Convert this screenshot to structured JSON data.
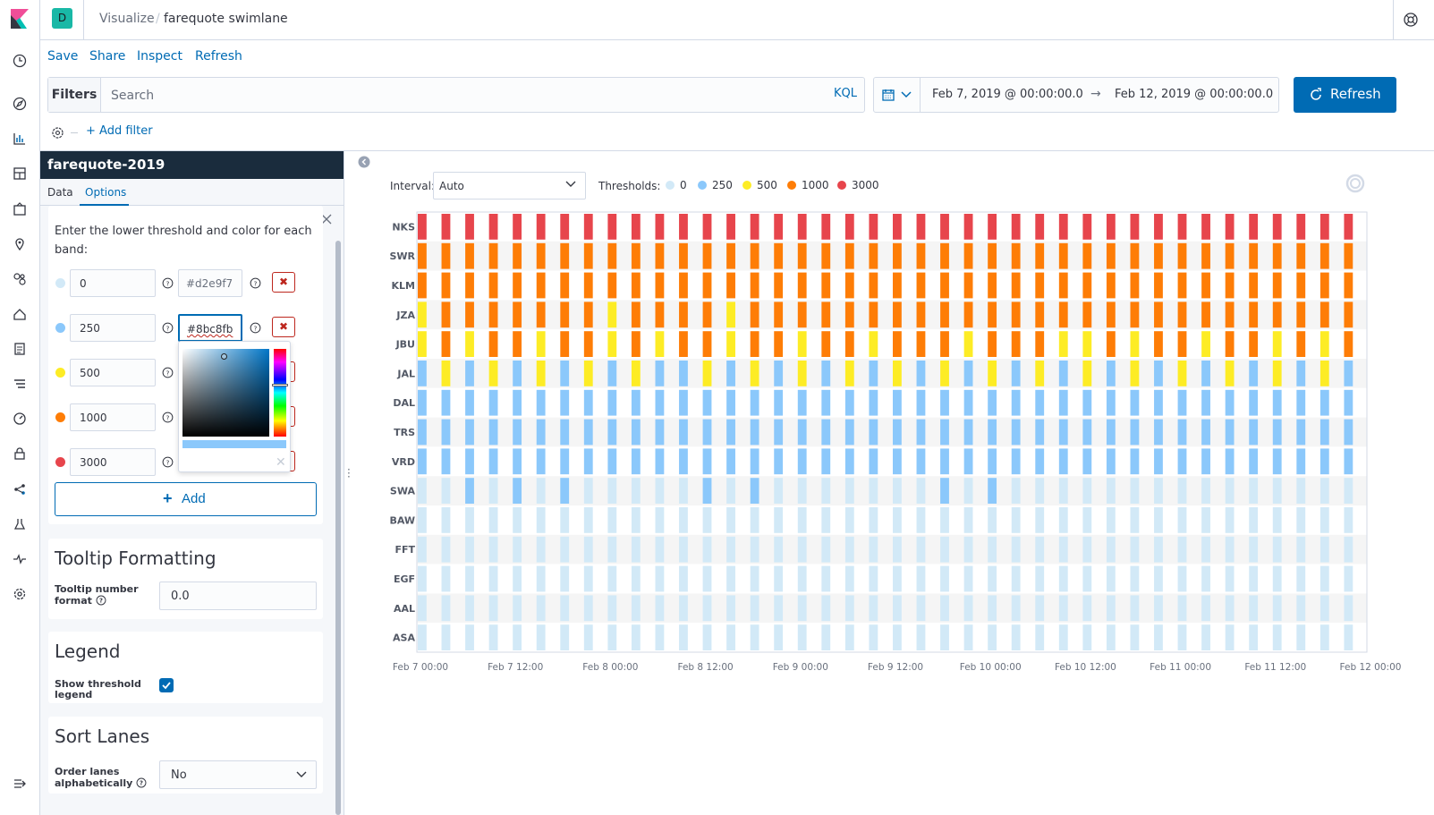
{
  "topbar": {
    "space_initial": "D",
    "breadcrumb_root": "Visualize",
    "breadcrumb_separator": "/",
    "breadcrumb_current": "farequote swimlane"
  },
  "menu": {
    "items": [
      "Save",
      "Share",
      "Inspect",
      "Refresh"
    ]
  },
  "query": {
    "filters_label": "Filters",
    "search_placeholder": "Search",
    "language_label": "KQL",
    "add_filter_label": "+ Add filter"
  },
  "date": {
    "start": "Feb 7, 2019 @ 00:00:00.0",
    "arrow": "→",
    "end": "Feb 12, 2019 @ 00:00:00.0"
  },
  "refresh_button": "Refresh",
  "sidebar": {
    "index_pattern": "farequote-2019",
    "tab_data": "Data",
    "tab_options": "Options",
    "ranges_description": "Enter the lower threshold and color for each band:",
    "ranges": [
      {
        "value": "0",
        "color": "#d2e9f7"
      },
      {
        "value": "250",
        "color": "#8bc8fb"
      },
      {
        "value": "500",
        "color": ""
      },
      {
        "value": "1000",
        "color": ""
      },
      {
        "value": "3000",
        "color": ""
      }
    ],
    "range_dot_colors": [
      "#d2e9f7",
      "#8bc8fb",
      "#fdec25",
      "#fe7d06",
      "#e7454c"
    ],
    "add_label": "Add",
    "tooltip_title": "Tooltip Formatting",
    "tooltip_label": "Tooltip number format",
    "tooltip_value": "0.0",
    "legend_title": "Legend",
    "legend_label": "Show threshold legend",
    "legend_checked": true,
    "sort_title": "Sort Lanes",
    "sort_label": "Order lanes alphabetically",
    "sort_value": "No"
  },
  "vis": {
    "interval_label": "Interval:",
    "interval_value": "Auto",
    "thresholds_label": "Thresholds:",
    "legend": [
      {
        "label": "0",
        "color": "#d2e9f7"
      },
      {
        "label": "250",
        "color": "#8bc8fb"
      },
      {
        "label": "500",
        "color": "#fdec25"
      },
      {
        "label": "1000",
        "color": "#fe7d06"
      },
      {
        "label": "3000",
        "color": "#e7454c"
      }
    ]
  },
  "chart_data": {
    "type": "heatmap",
    "lanes": [
      "NKS",
      "SWR",
      "KLM",
      "JZA",
      "JBU",
      "JAL",
      "DAL",
      "TRS",
      "VRD",
      "SWA",
      "BAW",
      "FFT",
      "EGF",
      "AAL",
      "ASA"
    ],
    "x_ticks": [
      "Feb 7 00:00",
      "Feb 7 12:00",
      "Feb 8 00:00",
      "Feb 8 12:00",
      "Feb 9 00:00",
      "Feb 9 12:00",
      "Feb 10 00:00",
      "Feb 10 12:00",
      "Feb 11 00:00",
      "Feb 11 12:00",
      "Feb 12 00:00"
    ],
    "x_range": [
      "Feb 7 00:00",
      "Feb 12 00:00"
    ],
    "bucket_count": 40,
    "band_thresholds": [
      0,
      250,
      500,
      1000,
      3000
    ],
    "band_colors": [
      "#d2e9f7",
      "#8bc8fb",
      "#fdec25",
      "#fe7d06",
      "#e7454c"
    ],
    "cells_note_band_index_per_lane": {
      "NKS": [
        4,
        4,
        4,
        4,
        4,
        4,
        4,
        4,
        4,
        4,
        4,
        4,
        4,
        4,
        4,
        4,
        4,
        4,
        4,
        4,
        4,
        4,
        4,
        4,
        4,
        4,
        4,
        4,
        4,
        4,
        4,
        4,
        4,
        4,
        4,
        4,
        4,
        4,
        4,
        4
      ],
      "SWR": [
        3,
        3,
        3,
        3,
        3,
        3,
        3,
        3,
        3,
        3,
        3,
        3,
        3,
        3,
        3,
        3,
        3,
        3,
        3,
        3,
        3,
        3,
        3,
        3,
        3,
        3,
        3,
        3,
        3,
        3,
        3,
        3,
        3,
        3,
        3,
        3,
        3,
        3,
        3,
        3
      ],
      "KLM": [
        3,
        3,
        3,
        3,
        3,
        3,
        3,
        3,
        3,
        3,
        3,
        3,
        3,
        3,
        3,
        3,
        3,
        3,
        3,
        3,
        3,
        3,
        3,
        3,
        3,
        3,
        3,
        3,
        3,
        3,
        3,
        3,
        3,
        3,
        3,
        3,
        3,
        3,
        3,
        3
      ],
      "JZA": [
        2,
        3,
        3,
        3,
        3,
        3,
        3,
        3,
        2,
        3,
        3,
        3,
        3,
        2,
        3,
        3,
        3,
        3,
        3,
        3,
        3,
        3,
        3,
        3,
        3,
        3,
        3,
        3,
        3,
        3,
        3,
        3,
        3,
        3,
        3,
        3,
        3,
        3,
        3,
        3
      ],
      "JBU": [
        2,
        3,
        2,
        3,
        3,
        2,
        3,
        3,
        2,
        3,
        2,
        3,
        3,
        2,
        3,
        3,
        2,
        3,
        3,
        2,
        3,
        3,
        3,
        2,
        3,
        3,
        3,
        2,
        2,
        3,
        2,
        3,
        3,
        2,
        3,
        3,
        2,
        3,
        2,
        3
      ],
      "JAL": [
        1,
        2,
        1,
        2,
        1,
        2,
        1,
        2,
        1,
        2,
        1,
        1,
        2,
        1,
        2,
        1,
        2,
        1,
        2,
        1,
        2,
        1,
        2,
        1,
        2,
        1,
        2,
        1,
        2,
        1,
        2,
        1,
        2,
        1,
        2,
        1,
        2,
        1,
        2,
        1
      ],
      "DAL": [
        1,
        1,
        1,
        1,
        1,
        1,
        1,
        1,
        1,
        1,
        1,
        1,
        1,
        1,
        1,
        1,
        1,
        1,
        1,
        1,
        1,
        1,
        1,
        1,
        1,
        1,
        1,
        1,
        1,
        1,
        1,
        1,
        1,
        1,
        1,
        1,
        1,
        1,
        1,
        1
      ],
      "TRS": [
        1,
        1,
        1,
        1,
        1,
        1,
        1,
        1,
        1,
        1,
        1,
        1,
        1,
        1,
        1,
        1,
        1,
        1,
        1,
        1,
        1,
        1,
        1,
        1,
        1,
        1,
        1,
        1,
        1,
        1,
        1,
        1,
        1,
        1,
        1,
        1,
        1,
        1,
        1,
        1
      ],
      "VRD": [
        1,
        1,
        1,
        1,
        1,
        1,
        1,
        1,
        1,
        1,
        1,
        1,
        1,
        1,
        1,
        1,
        1,
        1,
        1,
        1,
        1,
        1,
        1,
        1,
        1,
        1,
        1,
        1,
        1,
        1,
        1,
        1,
        1,
        1,
        1,
        1,
        1,
        1,
        1,
        1
      ],
      "SWA": [
        0,
        0,
        1,
        0,
        1,
        0,
        1,
        0,
        0,
        0,
        0,
        0,
        1,
        0,
        1,
        0,
        0,
        0,
        0,
        0,
        0,
        0,
        1,
        0,
        1,
        0,
        0,
        0,
        0,
        0,
        0,
        0,
        0,
        0,
        0,
        0,
        0,
        0,
        0,
        0
      ],
      "BAW": [
        0,
        0,
        0,
        0,
        0,
        0,
        0,
        0,
        0,
        0,
        0,
        0,
        0,
        0,
        0,
        0,
        0,
        0,
        0,
        0,
        0,
        0,
        0,
        0,
        0,
        0,
        0,
        0,
        0,
        0,
        0,
        0,
        0,
        0,
        0,
        0,
        0,
        0,
        0,
        0
      ],
      "FFT": [
        0,
        0,
        0,
        0,
        0,
        0,
        0,
        0,
        0,
        0,
        0,
        0,
        0,
        0,
        0,
        0,
        0,
        0,
        0,
        0,
        0,
        0,
        0,
        0,
        0,
        0,
        0,
        0,
        0,
        0,
        0,
        0,
        0,
        0,
        0,
        0,
        0,
        0,
        0,
        0
      ],
      "EGF": [
        0,
        0,
        0,
        0,
        0,
        0,
        0,
        0,
        0,
        0,
        0,
        0,
        0,
        0,
        0,
        0,
        0,
        0,
        0,
        0,
        0,
        0,
        0,
        0,
        0,
        0,
        0,
        0,
        0,
        0,
        0,
        0,
        0,
        0,
        0,
        0,
        0,
        0,
        0,
        0
      ],
      "AAL": [
        0,
        0,
        0,
        0,
        0,
        0,
        0,
        0,
        0,
        0,
        0,
        0,
        0,
        0,
        0,
        0,
        0,
        0,
        0,
        0,
        0,
        0,
        0,
        0,
        0,
        0,
        0,
        0,
        0,
        0,
        0,
        0,
        0,
        0,
        0,
        0,
        0,
        0,
        0,
        0
      ],
      "ASA": [
        0,
        0,
        0,
        0,
        0,
        0,
        0,
        0,
        0,
        0,
        0,
        0,
        0,
        0,
        0,
        0,
        0,
        0,
        0,
        0,
        0,
        0,
        0,
        0,
        0,
        0,
        0,
        0,
        0,
        0,
        0,
        0,
        0,
        0,
        0,
        0,
        0,
        0,
        0,
        0
      ]
    },
    "legend_position": "top-left"
  },
  "icons": {
    "nav": [
      "clock-icon",
      "compass-icon",
      "visualize-icon",
      "dashboard-icon",
      "canvas-icon",
      "maps-icon",
      "ml-icon",
      "infra-icon",
      "logs-icon",
      "apm-icon",
      "uptime-icon",
      "siem-icon",
      "graph-icon",
      "devtools-icon",
      "monitoring-icon",
      "gear-icon"
    ]
  }
}
